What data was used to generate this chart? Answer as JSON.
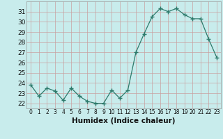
{
  "x": [
    0,
    1,
    2,
    3,
    4,
    5,
    6,
    7,
    8,
    9,
    10,
    11,
    12,
    13,
    14,
    15,
    16,
    17,
    18,
    19,
    20,
    21,
    22,
    23
  ],
  "y": [
    23.8,
    22.7,
    23.5,
    23.2,
    22.3,
    23.5,
    22.7,
    22.2,
    22.0,
    22.0,
    23.3,
    22.5,
    23.3,
    27.0,
    28.8,
    30.5,
    31.3,
    31.0,
    31.3,
    30.7,
    30.3,
    30.3,
    28.3,
    26.5
  ],
  "line_color": "#2d7a6b",
  "marker": "+",
  "marker_size": 4,
  "bg_color": "#c8ecec",
  "grid_color": "#e8f8f8",
  "grid_color2": "#c0b0b0",
  "xlabel": "Humidex (Indice chaleur)",
  "ylim": [
    21.5,
    32.0
  ],
  "xlim": [
    -0.5,
    23.5
  ],
  "yticks": [
    22,
    23,
    24,
    25,
    26,
    27,
    28,
    29,
    30,
    31
  ],
  "xticks": [
    0,
    1,
    2,
    3,
    4,
    5,
    6,
    7,
    8,
    9,
    10,
    11,
    12,
    13,
    14,
    15,
    16,
    17,
    18,
    19,
    20,
    21,
    22,
    23
  ],
  "tick_label_fontsize": 6.5,
  "xlabel_fontsize": 7.5
}
